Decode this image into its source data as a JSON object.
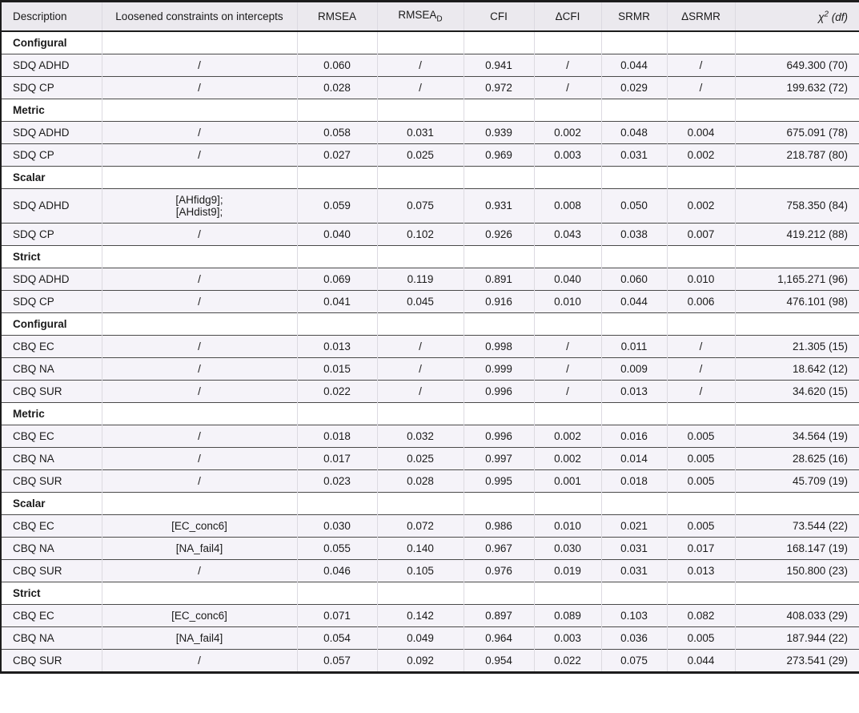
{
  "colors": {
    "header_bg": "#ebe9ee",
    "data_row_bg": "#f5f3f9",
    "section_row_bg": "#ffffff",
    "rule_dark": "#1c1c1c",
    "rule_row": "#4a4a4a",
    "rule_column": "#dcdae1",
    "text": "#1a1a1a"
  },
  "table": {
    "columns": [
      {
        "label": "Description"
      },
      {
        "label": "Loosened constraints on intercepts"
      },
      {
        "label": "RMSEA"
      },
      {
        "label": "RMSEA",
        "sub": "D"
      },
      {
        "label": "CFI"
      },
      {
        "label": "ΔCFI"
      },
      {
        "label": "SRMR"
      },
      {
        "label": "ΔSRMR"
      },
      {
        "label": "χ",
        "sup": "2",
        "suffix": " (df)"
      }
    ],
    "cell_names": [
      "description-cell",
      "loosened-constraints-cell",
      "rmsea-cell",
      "rmsea-d-cell",
      "cfi-cell",
      "delta-cfi-cell",
      "srmr-cell",
      "delta-srmr-cell",
      "chisq-df-cell"
    ],
    "sections": [
      {
        "header": "Configural",
        "rows": [
          {
            "cells": [
              "SDQ ADHD",
              "/",
              "0.060",
              "/",
              "0.941",
              "/",
              "0.044",
              "/",
              "649.300 (70)"
            ]
          },
          {
            "cells": [
              "SDQ CP",
              "/",
              "0.028",
              "/",
              "0.972",
              "/",
              "0.029",
              "/",
              "199.632 (72)"
            ]
          }
        ]
      },
      {
        "header": "Metric",
        "rows": [
          {
            "cells": [
              "SDQ ADHD",
              "/",
              "0.058",
              "0.031",
              "0.939",
              "0.002",
              "0.048",
              "0.004",
              "675.091 (78)"
            ]
          },
          {
            "cells": [
              "SDQ CP",
              "/",
              "0.027",
              "0.025",
              "0.969",
              "0.003",
              "0.031",
              "0.002",
              "218.787 (80)"
            ]
          }
        ]
      },
      {
        "header": "Scalar",
        "rows": [
          {
            "cells": [
              "SDQ ADHD",
              "[AHfidg9];\n[AHdist9];",
              "0.059",
              "0.075",
              "0.931",
              "0.008",
              "0.050",
              "0.002",
              "758.350 (84)"
            ]
          },
          {
            "cells": [
              "SDQ CP",
              "/",
              "0.040",
              "0.102",
              "0.926",
              "0.043",
              "0.038",
              "0.007",
              "419.212 (88)"
            ]
          }
        ]
      },
      {
        "header": "Strict",
        "rows": [
          {
            "cells": [
              "SDQ ADHD",
              "/",
              "0.069",
              "0.119",
              "0.891",
              "0.040",
              "0.060",
              "0.010",
              "1,165.271 (96)"
            ]
          },
          {
            "cells": [
              "SDQ CP",
              "/",
              "0.041",
              "0.045",
              "0.916",
              "0.010",
              "0.044",
              "0.006",
              "476.101 (98)"
            ]
          }
        ]
      },
      {
        "header": "Configural",
        "rows": [
          {
            "cells": [
              "CBQ EC",
              "/",
              "0.013",
              "/",
              "0.998",
              "/",
              "0.011",
              "/",
              "21.305 (15)"
            ]
          },
          {
            "cells": [
              "CBQ NA",
              "/",
              "0.015",
              "/",
              "0.999",
              "/",
              "0.009",
              "/",
              "18.642 (12)"
            ]
          },
          {
            "cells": [
              "CBQ SUR",
              "/",
              "0.022",
              "/",
              "0.996",
              "/",
              "0.013",
              "/",
              "34.620 (15)"
            ]
          }
        ]
      },
      {
        "header": "Metric",
        "rows": [
          {
            "cells": [
              "CBQ EC",
              "/",
              "0.018",
              "0.032",
              "0.996",
              "0.002",
              "0.016",
              "0.005",
              "34.564 (19)"
            ]
          },
          {
            "cells": [
              "CBQ NA",
              "/",
              "0.017",
              "0.025",
              "0.997",
              "0.002",
              "0.014",
              "0.005",
              "28.625 (16)"
            ]
          },
          {
            "cells": [
              "CBQ SUR",
              "/",
              "0.023",
              "0.028",
              "0.995",
              "0.001",
              "0.018",
              "0.005",
              "45.709 (19)"
            ]
          }
        ]
      },
      {
        "header": "Scalar",
        "rows": [
          {
            "cells": [
              "CBQ EC",
              "[EC_conc6]",
              "0.030",
              "0.072",
              "0.986",
              "0.010",
              "0.021",
              "0.005",
              "73.544 (22)"
            ]
          },
          {
            "cells": [
              "CBQ NA",
              "[NA_fail4]",
              "0.055",
              "0.140",
              "0.967",
              "0.030",
              "0.031",
              "0.017",
              "168.147 (19)"
            ]
          },
          {
            "cells": [
              "CBQ SUR",
              "/",
              "0.046",
              "0.105",
              "0.976",
              "0.019",
              "0.031",
              "0.013",
              "150.800 (23)"
            ]
          }
        ]
      },
      {
        "header": "Strict",
        "rows": [
          {
            "cells": [
              "CBQ EC",
              "[EC_conc6]",
              "0.071",
              "0.142",
              "0.897",
              "0.089",
              "0.103",
              "0.082",
              "408.033 (29)"
            ]
          },
          {
            "cells": [
              "CBQ NA",
              "[NA_fail4]",
              "0.054",
              "0.049",
              "0.964",
              "0.003",
              "0.036",
              "0.005",
              "187.944 (22)"
            ]
          },
          {
            "cells": [
              "CBQ SUR",
              "/",
              "0.057",
              "0.092",
              "0.954",
              "0.022",
              "0.075",
              "0.044",
              "273.541 (29)"
            ]
          }
        ]
      }
    ]
  }
}
